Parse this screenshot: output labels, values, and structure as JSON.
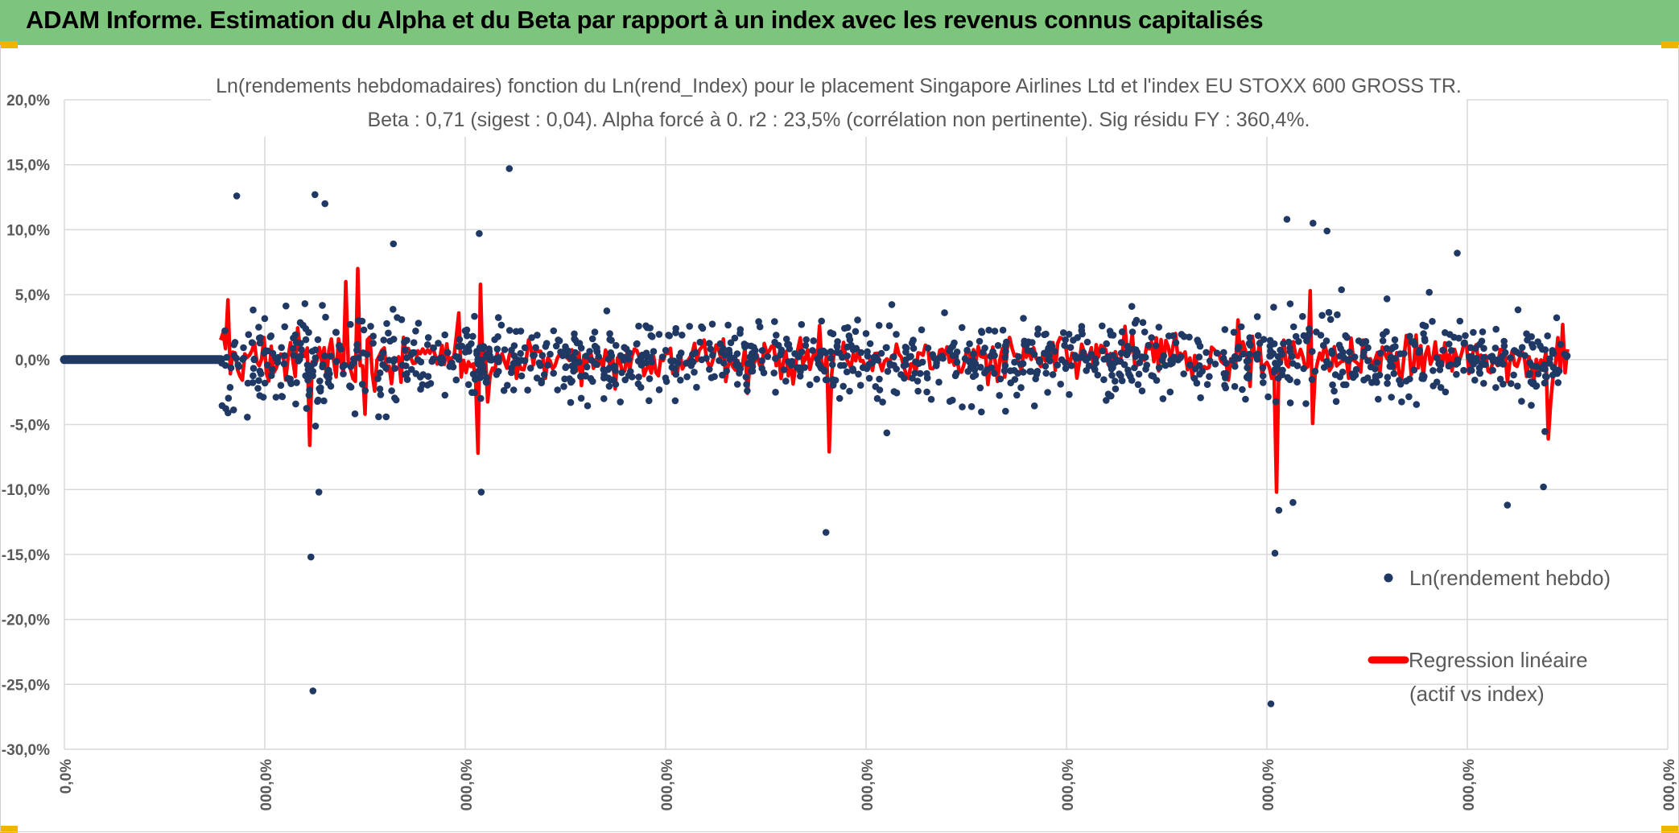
{
  "header": {
    "title": "ADAM Informe. Estimation du Alpha et du Beta par rapport à un index avec les revenus connus capitalisés"
  },
  "colors": {
    "banner": "#7dc47d",
    "points": "#1f3864",
    "regression": "#ff0000",
    "grid": "#d9d9d9"
  },
  "chart_data": {
    "type": "scatter",
    "title": "Ln(rendements hebdomadaires) fonction du Ln(rend_Index) pour le placement Singapore Airlines Ltd et l'index EU STOXX 600 GROSS TR.",
    "subtitle": "Beta : 0,71 (sigest : 0,04). Alpha forcé à 0. r2 : 23,5% (corrélation non pertinente). Sig résidu FY : 360,4%.",
    "ylim": [
      -30,
      20
    ],
    "yticks": [
      "20,0%",
      "15,0%",
      "10,0%",
      "5,0%",
      "0,0%",
      "-5,0%",
      "-10,0%",
      "-15,0%",
      "-20,0%",
      "-25,0%",
      "-30,0%"
    ],
    "yvalues": [
      20,
      15,
      10,
      5,
      0,
      -5,
      -10,
      -15,
      -20,
      -25,
      -30
    ],
    "xticks": [
      "0,0%",
      "000,0%",
      "000,0%",
      "000,0%",
      "000,0%",
      "000,0%",
      "000,0%",
      "000,0%",
      "000,0%"
    ],
    "xlim": [
      0,
      8
    ],
    "data_start_x": 0.78,
    "data_end_x": 7.5,
    "series": [
      {
        "name": "Ln(rendement hebdo)",
        "kind": "points",
        "n_points": 1250,
        "notable_points": [
          {
            "x": 0.86,
            "y": 12.6
          },
          {
            "x": 1.25,
            "y": 12.7
          },
          {
            "x": 1.3,
            "y": 12.0
          },
          {
            "x": 2.22,
            "y": 14.7
          },
          {
            "x": 2.07,
            "y": 9.7
          },
          {
            "x": 1.23,
            "y": -15.2
          },
          {
            "x": 1.24,
            "y": -25.5
          },
          {
            "x": 1.27,
            "y": -10.2
          },
          {
            "x": 3.8,
            "y": -13.3
          },
          {
            "x": 2.08,
            "y": -10.2
          },
          {
            "x": 6.02,
            "y": -26.5
          },
          {
            "x": 6.04,
            "y": -14.9
          },
          {
            "x": 6.1,
            "y": 10.8
          },
          {
            "x": 6.23,
            "y": 10.5
          },
          {
            "x": 6.3,
            "y": 9.9
          },
          {
            "x": 6.06,
            "y": -11.6
          },
          {
            "x": 6.13,
            "y": -11.0
          },
          {
            "x": 7.2,
            "y": -11.2
          },
          {
            "x": 7.38,
            "y": -9.8
          },
          {
            "x": 6.95,
            "y": 8.2
          }
        ]
      },
      {
        "name": "Regression linéaire (actif vs index)",
        "kind": "line",
        "beta": 0.71,
        "notable_points": [
          {
            "x": 0.82,
            "y": 4.6
          },
          {
            "x": 1.23,
            "y": -6.6
          },
          {
            "x": 1.47,
            "y": 7.0
          },
          {
            "x": 1.4,
            "y": 6.0
          },
          {
            "x": 2.06,
            "y": -7.2
          },
          {
            "x": 2.08,
            "y": 5.8
          },
          {
            "x": 3.82,
            "y": -7.1
          },
          {
            "x": 6.05,
            "y": -10.2
          },
          {
            "x": 6.22,
            "y": 5.3
          },
          {
            "x": 7.4,
            "y": -6.1
          },
          {
            "x": 1.5,
            "y": -4.2
          }
        ]
      }
    ],
    "legend": {
      "points_label": "Ln(rendement hebdo)",
      "line_label_1": "Regression linéaire",
      "line_label_2": "(actif vs index)"
    }
  }
}
